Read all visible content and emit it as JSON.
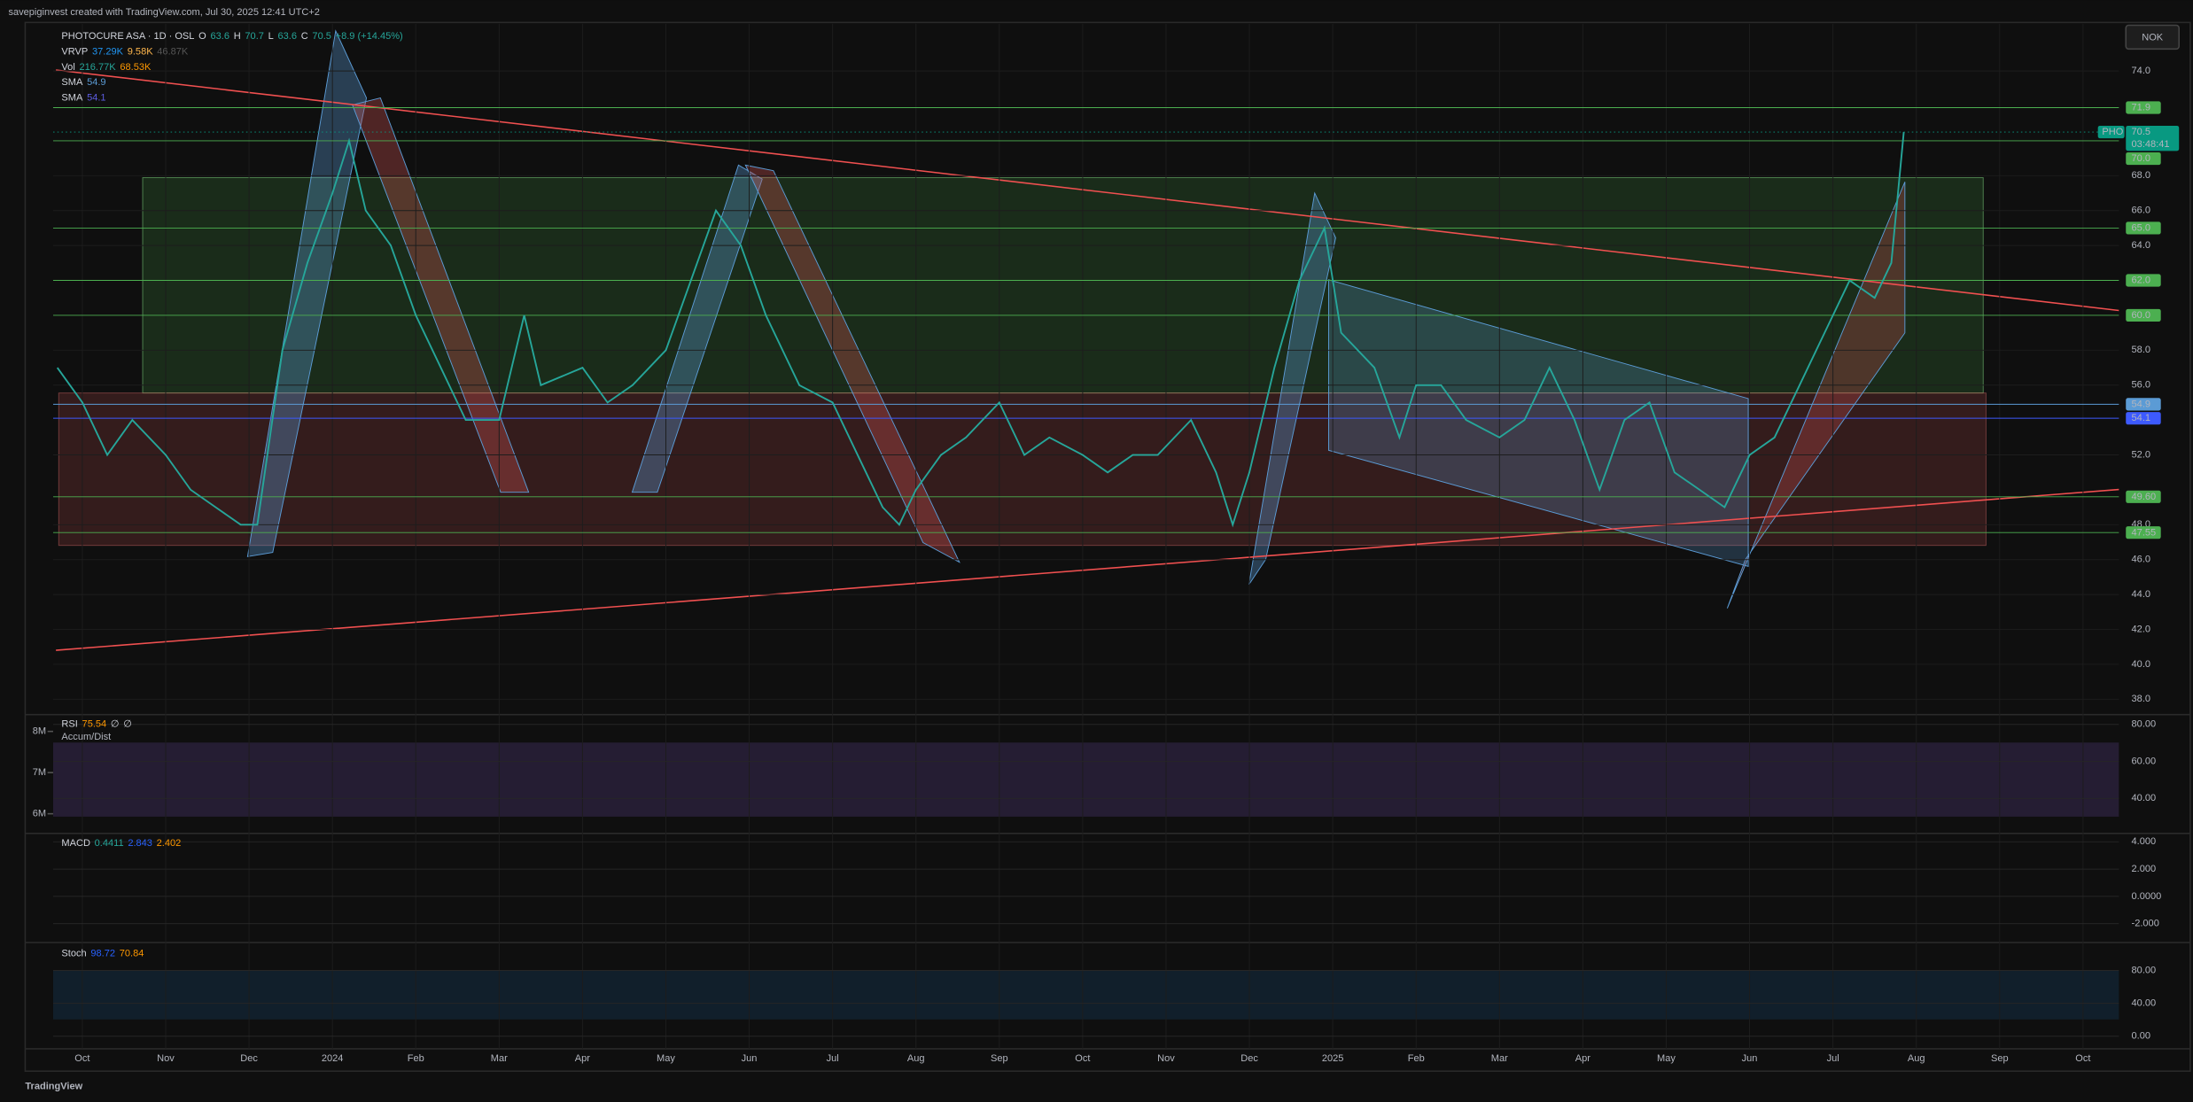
{
  "header": {
    "watermark": "savepiginvest created with TradingView.com, Jul 30, 2025 12:41 UTC+2"
  },
  "currency": "NOK",
  "legend": {
    "symbol": "PHOTOCURE ASA · 1D · OSL",
    "ohlc": [
      {
        "key": "O",
        "value": "63.6"
      },
      {
        "key": "H",
        "value": "70.7"
      },
      {
        "key": "L",
        "value": "63.6"
      },
      {
        "key": "C",
        "value": "70.5"
      }
    ],
    "change": "+8.9 (+14.45%)",
    "vrvp": {
      "name": "VRVP",
      "values": [
        "37.29K",
        "9.58K",
        "46.87K"
      ]
    },
    "vol": {
      "name": "Vol",
      "values": [
        "216.77K",
        "68.53K"
      ]
    },
    "sma": [
      {
        "name": "SMA",
        "value": "54.9"
      },
      {
        "name": "SMA",
        "value": "54.1"
      }
    ]
  },
  "chart_data": {
    "type": "line",
    "color": "#26a69a",
    "x": [
      -0.3,
      0,
      0.3,
      0.6,
      1,
      1.3,
      1.6,
      1.9,
      2.1,
      2.4,
      2.7,
      3,
      3.2,
      3.4,
      3.7,
      4,
      4.3,
      4.6,
      5,
      5.3,
      5.5,
      6,
      6.3,
      6.6,
      7,
      7.3,
      7.6,
      7.9,
      8.2,
      8.6,
      9,
      9.3,
      9.6,
      9.8,
      10,
      10.3,
      10.6,
      11,
      11.3,
      11.6,
      12,
      12.3,
      12.6,
      12.9,
      13.3,
      13.6,
      13.8,
      14,
      14.3,
      14.6,
      14.9,
      15.1,
      15.5,
      15.8,
      16,
      16.3,
      16.6,
      17,
      17.3,
      17.6,
      17.9,
      18.2,
      18.5,
      18.8,
      19.1,
      19.4,
      19.7,
      20,
      20.3,
      20.6,
      20.9,
      21.2,
      21.5,
      21.7,
      21.85
    ],
    "values": [
      57,
      55,
      52,
      54,
      52,
      50,
      49,
      48,
      48,
      58,
      63,
      67,
      70,
      66,
      64,
      60,
      57,
      54,
      54,
      60,
      56,
      57,
      55,
      56,
      58,
      62,
      66,
      64,
      60,
      56,
      55,
      52,
      49,
      48,
      50,
      52,
      53,
      55,
      52,
      53,
      52,
      51,
      52,
      52,
      54,
      51,
      48,
      51,
      57,
      62,
      65,
      59,
      57,
      53,
      56,
      56,
      54,
      53,
      54,
      57,
      54,
      50,
      54,
      55,
      51,
      50,
      49,
      52,
      53,
      56,
      59,
      62,
      61,
      63,
      70.5
    ],
    "xlim": [
      -0.35,
      24.43
    ],
    "xticks": [
      {
        "value": 0,
        "label": "Oct"
      },
      {
        "value": 1,
        "label": "Nov"
      },
      {
        "value": 2,
        "label": "Dec"
      },
      {
        "value": 3,
        "label": "2024"
      },
      {
        "value": 4,
        "label": "Feb"
      },
      {
        "value": 5,
        "label": "Mar"
      },
      {
        "value": 6,
        "label": "Apr"
      },
      {
        "value": 7,
        "label": "May"
      },
      {
        "value": 8,
        "label": "Jun"
      },
      {
        "value": 9,
        "label": "Jul"
      },
      {
        "value": 10,
        "label": "Aug"
      },
      {
        "value": 11,
        "label": "Sep"
      },
      {
        "value": 12,
        "label": "Oct"
      },
      {
        "value": 13,
        "label": "Nov"
      },
      {
        "value": 14,
        "label": "Dec"
      },
      {
        "value": 15,
        "label": "2025"
      },
      {
        "value": 16,
        "label": "Feb"
      },
      {
        "value": 17,
        "label": "Mar"
      },
      {
        "value": 18,
        "label": "Apr"
      },
      {
        "value": 19,
        "label": "May"
      },
      {
        "value": 20,
        "label": "Jun"
      },
      {
        "value": 21,
        "label": "Jul"
      },
      {
        "value": 22,
        "label": "Aug"
      },
      {
        "value": 23,
        "label": "Sep"
      },
      {
        "value": 24,
        "label": "Oct"
      }
    ],
    "ylim": [
      37.2,
      76.7
    ],
    "yticks": [
      {
        "value": 74,
        "label": "74.0"
      },
      {
        "value": 68,
        "label": "68.0"
      },
      {
        "value": 66,
        "label": "66.0"
      },
      {
        "value": 64,
        "label": "64.0"
      },
      {
        "value": 58,
        "label": "58.0"
      },
      {
        "value": 56,
        "label": "56.0"
      },
      {
        "value": 52,
        "label": "52.0"
      },
      {
        "value": 48,
        "label": "48.0"
      },
      {
        "value": 46,
        "label": "46.0"
      },
      {
        "value": 44,
        "label": "44.0"
      },
      {
        "value": 42,
        "label": "42.0"
      },
      {
        "value": 40,
        "label": "40.0"
      },
      {
        "value": 38,
        "label": "38.0"
      }
    ],
    "price_tags": [
      {
        "value": 71.9,
        "label": "71.9",
        "color": "#4caf50"
      },
      {
        "value": 70.5,
        "label": "70.5",
        "symbol": "PHO",
        "countdown": "03:48:41",
        "color": "#089981"
      },
      {
        "value": 70,
        "label": "70.0",
        "color": "#4caf50"
      },
      {
        "value": 65,
        "label": "65.0",
        "color": "#4caf50"
      },
      {
        "value": 62,
        "label": "62.0",
        "color": "#4caf50"
      },
      {
        "value": 60,
        "label": "60.0",
        "color": "#4caf50"
      },
      {
        "value": 54.9,
        "label": "54.9",
        "color": "#5b9bd5"
      },
      {
        "value": 54.1,
        "label": "54.1",
        "color": "#3d5afe"
      },
      {
        "value": 49.6,
        "label": "49.60",
        "color": "#4caf50"
      },
      {
        "value": 47.55,
        "label": "47.55",
        "color": "#4caf50"
      }
    ]
  },
  "panels": {
    "rsi": {
      "title": "RSI",
      "readings": [
        "75.54",
        "∅",
        "∅"
      ],
      "subtitle": "Accum/Dist",
      "ylim": [
        22.6,
        83.8
      ],
      "yticks": [
        {
          "value": 80,
          "label": "80.00"
        },
        {
          "value": 60,
          "label": "60.00"
        },
        {
          "value": 40,
          "label": "40.00"
        }
      ],
      "y2lim": [
        5590000,
        8340000
      ],
      "y2ticks": [
        {
          "value": 8000000,
          "label": "8M"
        },
        {
          "value": 7000000,
          "label": "7M"
        },
        {
          "value": 6000000,
          "label": "6M"
        }
      ]
    },
    "macd": {
      "title": "MACD",
      "readings": [
        "0.4411",
        "2.843",
        "2.402"
      ],
      "ylim": [
        -3.18,
        4.41
      ],
      "yticks": [
        {
          "value": 4,
          "label": "4.000"
        },
        {
          "value": 2,
          "label": "2.000"
        },
        {
          "value": 0,
          "label": "0.0000"
        },
        {
          "value": -2,
          "label": "-2.000"
        }
      ]
    },
    "stoch": {
      "title": "Stoch",
      "readings": [
        "98.72",
        "70.84"
      ],
      "ylim": [
        -15.3,
        108.9
      ],
      "yticks": [
        {
          "value": 80,
          "label": "80.00"
        },
        {
          "value": 40,
          "label": "40.00"
        },
        {
          "value": 0,
          "label": "0.00"
        }
      ]
    }
  },
  "footer": {
    "brand": "TradingView"
  }
}
